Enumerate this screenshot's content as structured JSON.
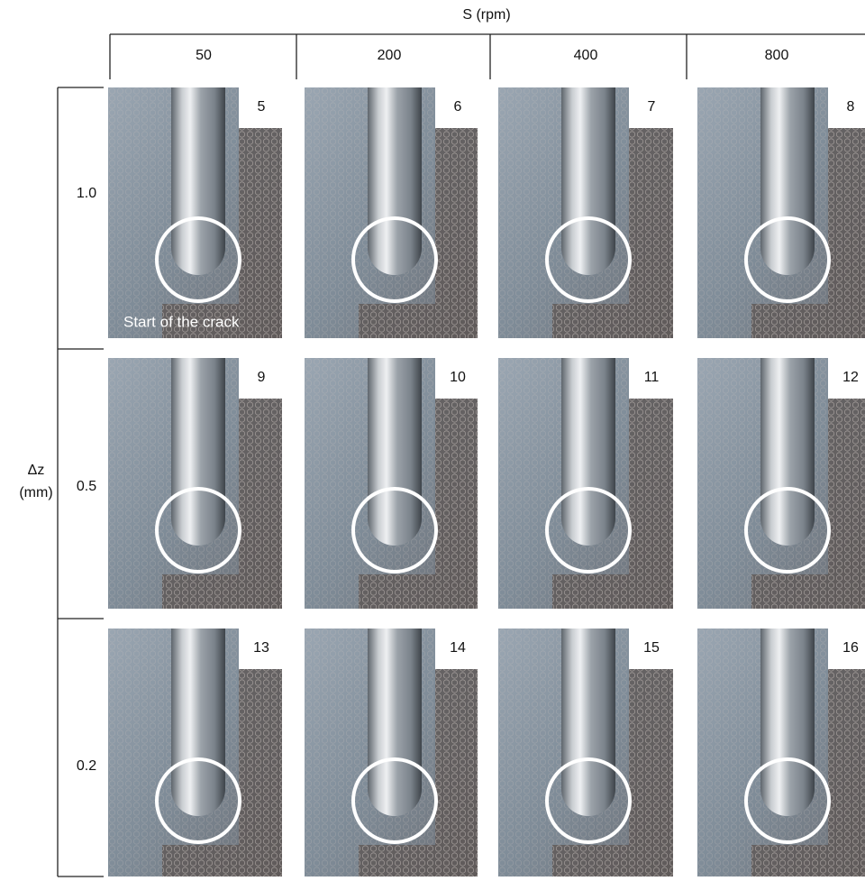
{
  "header": {
    "title": "S (rpm)"
  },
  "columns": [
    "50",
    "200",
    "400",
    "800"
  ],
  "row_axis": {
    "label": "Δz",
    "unit": "(mm)"
  },
  "rows": [
    {
      "label": "1.0",
      "cells": [
        "5",
        "6",
        "7",
        "8"
      ]
    },
    {
      "label": "0.5",
      "cells": [
        "9",
        "10",
        "11",
        "12"
      ]
    },
    {
      "label": "0.2",
      "cells": [
        "13",
        "14",
        "15",
        "16"
      ]
    }
  ],
  "annotation": "Start of the crack"
}
